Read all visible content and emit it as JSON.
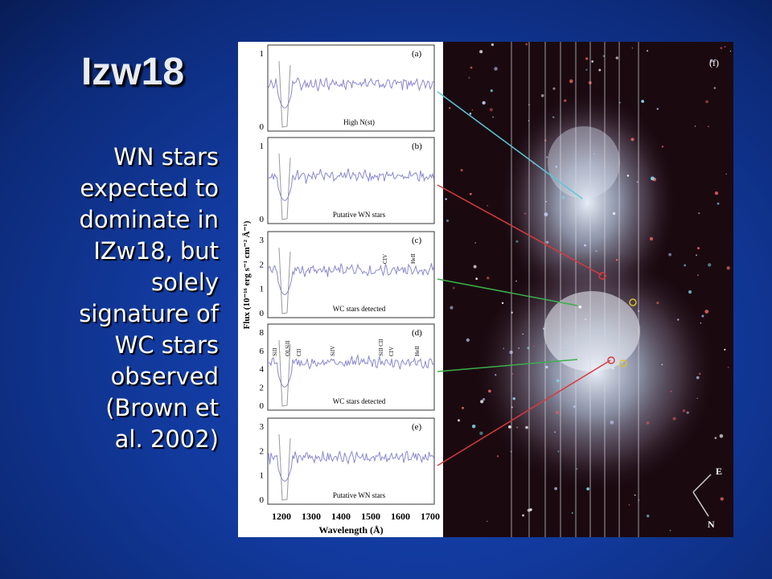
{
  "slide": {
    "title": "Izw18",
    "body_lines": [
      "WN stars",
      "expected to",
      "dominate in",
      "IZw18, but",
      "solely",
      "signature of",
      "WC stars",
      "observed",
      "(Brown et",
      "al. 2002)"
    ]
  },
  "figure": {
    "panels": [
      {
        "label": "(a)",
        "note": "High N(st)",
        "yticks": [
          "0",
          "1"
        ]
      },
      {
        "label": "(b)",
        "note": "Putative WN stars",
        "yticks": [
          "0",
          "1"
        ]
      },
      {
        "label": "(c)",
        "note": "WC stars detected",
        "yticks": [
          "0",
          "1",
          "2",
          "3"
        ],
        "lines": [
          "CIV",
          "HeII"
        ]
      },
      {
        "label": "(d)",
        "note": "WC stars detected",
        "yticks": [
          "0",
          "2",
          "4",
          "6",
          "8"
        ],
        "lines": [
          "SiII",
          "OI,SiII",
          "CII",
          "SiIV",
          "SiII CII",
          "CIV",
          "HeII"
        ]
      },
      {
        "label": "(e)",
        "note": "Putative WN stars",
        "yticks": [
          "0",
          "1",
          "2",
          "3"
        ]
      }
    ],
    "xticks": [
      "1200",
      "1300",
      "1400",
      "1500",
      "1600",
      "1700"
    ],
    "x_label": "Wavelength (Å)",
    "y_label": "Flux (10⁻¹⁶ erg s⁻¹ cm⁻² Å⁻¹)",
    "image_label": "(f)",
    "compass": [
      "E",
      "N"
    ]
  }
}
